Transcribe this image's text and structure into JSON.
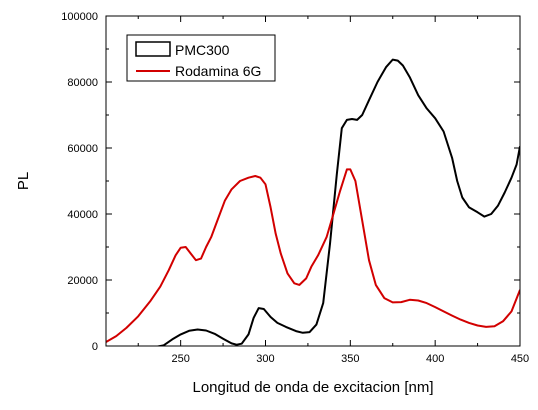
{
  "chart_data": {
    "type": "line",
    "title": "",
    "xlabel": "Longitud de onda de excitacion [nm]",
    "ylabel": "PL",
    "xlim": [
      206,
      450
    ],
    "ylim": [
      0,
      100000
    ],
    "x_ticks": [
      250,
      300,
      350,
      400,
      450
    ],
    "y_ticks": [
      0,
      20000,
      40000,
      60000,
      80000,
      100000
    ],
    "x_tick_labels": [
      "250",
      "300",
      "350",
      "400",
      "450"
    ],
    "y_tick_labels": [
      "0",
      "20000",
      "40000",
      "60000",
      "80000",
      "100000"
    ],
    "grid": false,
    "legend_position": "top-left",
    "series": [
      {
        "name": "PMC300",
        "color": "#000000",
        "points": [
          [
            206,
            -500
          ],
          [
            215,
            -600
          ],
          [
            225,
            -600
          ],
          [
            233,
            -500
          ],
          [
            240,
            200
          ],
          [
            245,
            2000
          ],
          [
            250,
            3500
          ],
          [
            255,
            4600
          ],
          [
            260,
            5000
          ],
          [
            265,
            4700
          ],
          [
            270,
            3700
          ],
          [
            275,
            2200
          ],
          [
            280,
            800
          ],
          [
            283,
            400
          ],
          [
            286,
            700
          ],
          [
            290,
            3500
          ],
          [
            293,
            8500
          ],
          [
            296,
            11500
          ],
          [
            299,
            11200
          ],
          [
            303,
            8800
          ],
          [
            307,
            7000
          ],
          [
            312,
            5800
          ],
          [
            318,
            4500
          ],
          [
            322,
            4000
          ],
          [
            326,
            4200
          ],
          [
            330,
            6500
          ],
          [
            334,
            13000
          ],
          [
            338,
            31000
          ],
          [
            342,
            52000
          ],
          [
            345,
            66000
          ],
          [
            348,
            68500
          ],
          [
            351,
            68800
          ],
          [
            354,
            68500
          ],
          [
            357,
            70000
          ],
          [
            361,
            74500
          ],
          [
            366,
            80000
          ],
          [
            371,
            84500
          ],
          [
            375,
            86800
          ],
          [
            378,
            86500
          ],
          [
            381,
            85000
          ],
          [
            385,
            81500
          ],
          [
            390,
            76000
          ],
          [
            395,
            72000
          ],
          [
            400,
            69000
          ],
          [
            405,
            65000
          ],
          [
            410,
            57000
          ],
          [
            413,
            50000
          ],
          [
            416,
            45000
          ],
          [
            420,
            42000
          ],
          [
            425,
            40500
          ],
          [
            429,
            39200
          ],
          [
            433,
            40000
          ],
          [
            437,
            42500
          ],
          [
            441,
            46500
          ],
          [
            445,
            51000
          ],
          [
            448,
            55000
          ],
          [
            450,
            60500
          ]
        ]
      },
      {
        "name": "Rodamina 6G",
        "color": "#d20000",
        "points": [
          [
            206,
            1200
          ],
          [
            212,
            3000
          ],
          [
            218,
            5500
          ],
          [
            225,
            9000
          ],
          [
            232,
            13500
          ],
          [
            238,
            18000
          ],
          [
            243,
            23000
          ],
          [
            247,
            27500
          ],
          [
            250,
            29800
          ],
          [
            253,
            30000
          ],
          [
            256,
            28000
          ],
          [
            259,
            26000
          ],
          [
            262,
            26500
          ],
          [
            265,
            30000
          ],
          [
            268,
            33000
          ],
          [
            272,
            38500
          ],
          [
            276,
            44000
          ],
          [
            280,
            47500
          ],
          [
            285,
            50000
          ],
          [
            290,
            51000
          ],
          [
            294,
            51500
          ],
          [
            297,
            51000
          ],
          [
            300,
            49000
          ],
          [
            303,
            42000
          ],
          [
            306,
            34000
          ],
          [
            309,
            28000
          ],
          [
            313,
            22000
          ],
          [
            317,
            19000
          ],
          [
            320,
            18500
          ],
          [
            324,
            20500
          ],
          [
            327,
            24000
          ],
          [
            331,
            27500
          ],
          [
            336,
            33000
          ],
          [
            340,
            40000
          ],
          [
            344,
            47000
          ],
          [
            348,
            53500
          ],
          [
            350,
            53500
          ],
          [
            353,
            50000
          ],
          [
            357,
            38000
          ],
          [
            361,
            26000
          ],
          [
            365,
            18500
          ],
          [
            370,
            14500
          ],
          [
            375,
            13200
          ],
          [
            380,
            13300
          ],
          [
            385,
            14000
          ],
          [
            390,
            13800
          ],
          [
            395,
            13000
          ],
          [
            400,
            11800
          ],
          [
            405,
            10500
          ],
          [
            410,
            9200
          ],
          [
            415,
            8000
          ],
          [
            420,
            7000
          ],
          [
            425,
            6200
          ],
          [
            430,
            5800
          ],
          [
            435,
            6000
          ],
          [
            440,
            7500
          ],
          [
            445,
            10500
          ],
          [
            450,
            17000
          ]
        ]
      }
    ]
  }
}
